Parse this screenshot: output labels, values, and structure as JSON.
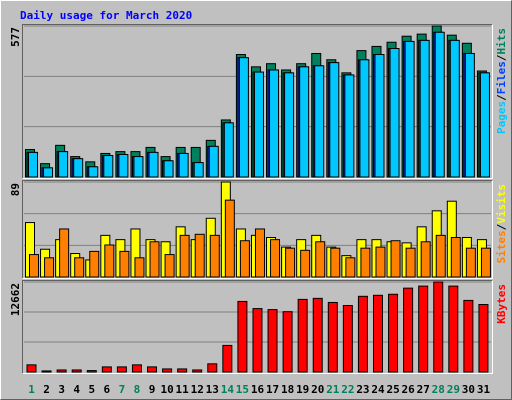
{
  "chart_data": [
    {
      "type": "bar",
      "title": "Daily usage for March 2020",
      "ylim": [
        0,
        577
      ],
      "yticks": [
        577
      ],
      "legend_separator": "/",
      "series": [
        {
          "name": "Hits",
          "color": "#00805c",
          "values": [
            105,
            51,
            121,
            78,
            58,
            90,
            97,
            97,
            113,
            78,
            113,
            113,
            140,
            218,
            468,
            421,
            433,
            409,
            433,
            472,
            448,
            398,
            483,
            499,
            515,
            538,
            546,
            577,
            542,
            511,
            405
          ]
        },
        {
          "name": "Files",
          "color": "#0040ff",
          "values": [
            94,
            35,
            97,
            70,
            39,
            82,
            86,
            78,
            94,
            62,
            90,
            55,
            117,
            207,
            456,
            401,
            409,
            398,
            421,
            425,
            437,
            390,
            448,
            468,
            491,
            518,
            522,
            553,
            522,
            472,
            398
          ]
        },
        {
          "name": "Pages",
          "color": "#00c8ff",
          "values": [
            94,
            35,
            97,
            70,
            39,
            82,
            86,
            78,
            94,
            62,
            90,
            55,
            117,
            207,
            456,
            401,
            409,
            398,
            421,
            425,
            437,
            390,
            448,
            468,
            491,
            518,
            522,
            553,
            522,
            472,
            398
          ]
        }
      ]
    },
    {
      "type": "bar",
      "ylim": [
        0,
        89
      ],
      "yticks": [
        89
      ],
      "legend_separator": "/",
      "series": [
        {
          "name": "Visits",
          "color": "#ffff00",
          "values": [
            51,
            26,
            35,
            22,
            16,
            39,
            35,
            45,
            35,
            33,
            47,
            35,
            55,
            89,
            45,
            39,
            37,
            28,
            35,
            39,
            28,
            20,
            35,
            35,
            33,
            32,
            47,
            62,
            71,
            37,
            35
          ]
        },
        {
          "name": "Sites",
          "color": "#ff8000",
          "values": [
            21,
            18,
            45,
            18,
            24,
            30,
            24,
            18,
            33,
            21,
            39,
            40,
            39,
            72,
            34,
            45,
            35,
            27,
            25,
            33,
            27,
            18,
            27,
            28,
            34,
            27,
            33,
            39,
            37,
            27,
            27
          ]
        }
      ]
    },
    {
      "type": "bar",
      "ylim": [
        0,
        12662
      ],
      "yticks": [
        12662
      ],
      "categories": [
        "1",
        "2",
        "3",
        "4",
        "5",
        "6",
        "7",
        "8",
        "9",
        "10",
        "11",
        "12",
        "13",
        "14",
        "15",
        "16",
        "17",
        "18",
        "19",
        "20",
        "21",
        "22",
        "23",
        "24",
        "25",
        "26",
        "27",
        "28",
        "29",
        "30",
        "31"
      ],
      "category_colors": [
        "#00805c",
        "#000000",
        "#000000",
        "#000000",
        "#000000",
        "#000000",
        "#00805c",
        "#00805c",
        "#000000",
        "#000000",
        "#000000",
        "#000000",
        "#000000",
        "#00805c",
        "#00805c",
        "#000000",
        "#000000",
        "#000000",
        "#000000",
        "#000000",
        "#00805c",
        "#00805c",
        "#000000",
        "#000000",
        "#000000",
        "#000000",
        "#000000",
        "#00805c",
        "#00805c",
        "#000000",
        "#000000"
      ],
      "series": [
        {
          "name": "KBytes",
          "color": "#ff0000",
          "values": [
            1007,
            150,
            288,
            288,
            200,
            719,
            719,
            1007,
            719,
            432,
            432,
            288,
            1151,
            3741,
            9928,
            8921,
            8777,
            8489,
            10216,
            10360,
            9784,
            9353,
            10648,
            10791,
            10935,
            11799,
            12086,
            12662,
            12086,
            10072,
            9497
          ]
        }
      ]
    }
  ]
}
